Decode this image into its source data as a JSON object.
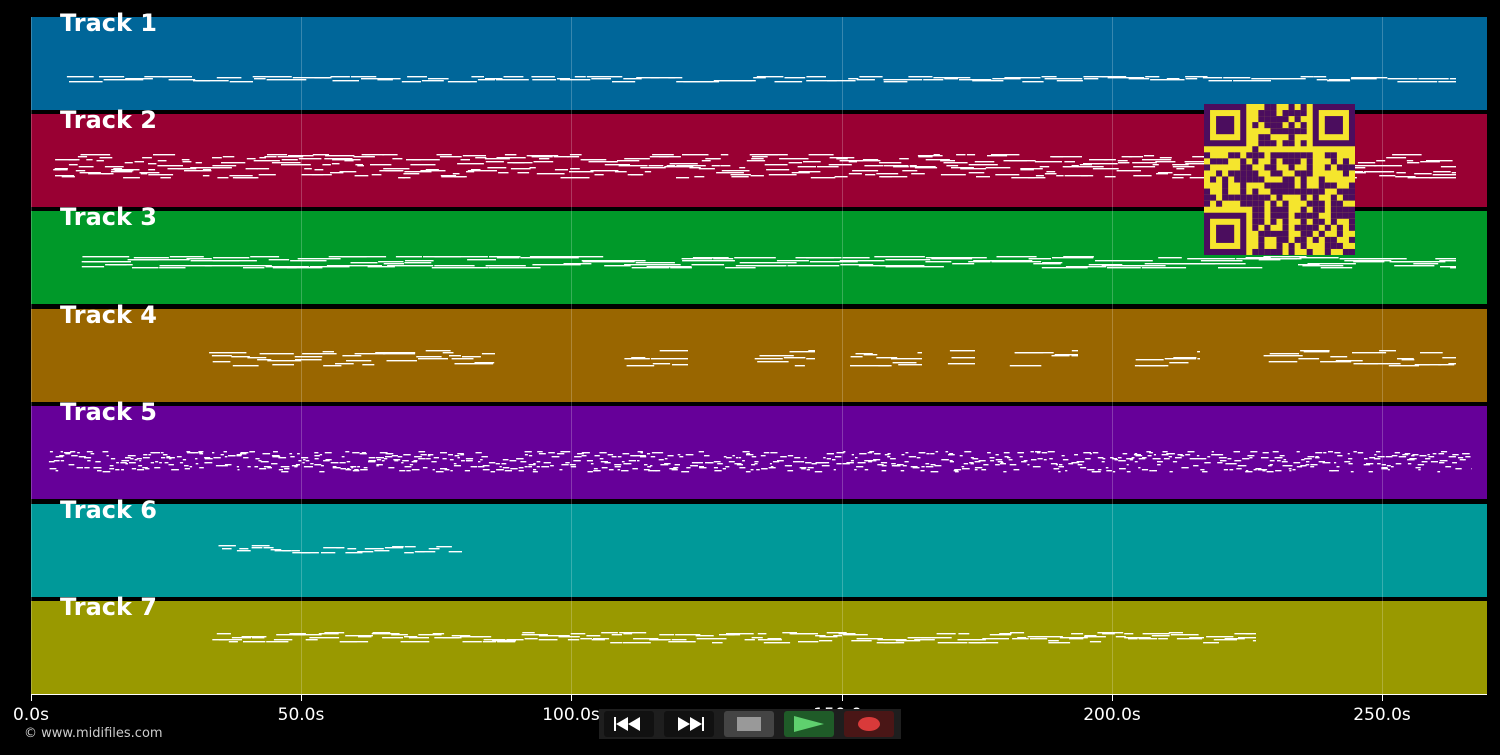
{
  "tracks": [
    {
      "label": "Track 1",
      "color": "#006699"
    },
    {
      "label": "Track 2",
      "color": "#990033"
    },
    {
      "label": "Track 3",
      "color": "#009929"
    },
    {
      "label": "Track 4",
      "color": "#996600"
    },
    {
      "label": "Track 5",
      "color": "#660099"
    },
    {
      "label": "Track 6",
      "color": "#009999"
    },
    {
      "label": "Track 7",
      "color": "#999900"
    }
  ],
  "axis": {
    "ticks": [
      "0.0s",
      "50.0s",
      "100.0s",
      "150.0s",
      "200.0s",
      "250.0s"
    ]
  },
  "credit": "© www.midifiles.com",
  "controls": {
    "rewind": "rewind-icon",
    "fast_forward": "fast-forward-icon",
    "stop": "stop-icon",
    "play": "play-icon",
    "record": "record-icon"
  },
  "qr_colors": {
    "fg": "#4b0d5e",
    "bg": "#f5e52d"
  }
}
